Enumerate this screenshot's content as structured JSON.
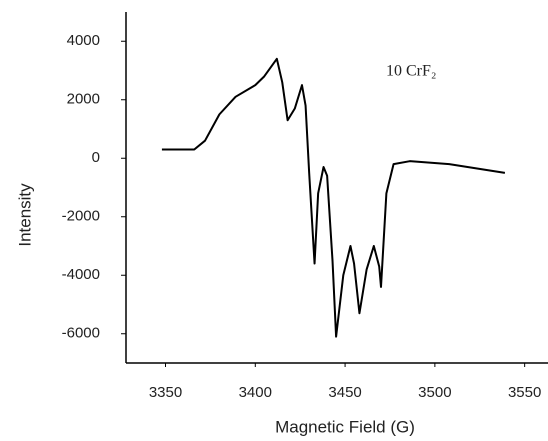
{
  "chart_data": {
    "type": "line",
    "x_label": "Magnetic Field (G)",
    "y_label": "Intensity",
    "annotation": "10 CrF₂",
    "x": [
      3348,
      3366,
      3372,
      3380,
      3389,
      3400,
      3405,
      3412,
      3415,
      3418,
      3422,
      3426,
      3428,
      3430,
      3433,
      3435,
      3438,
      3440,
      3443,
      3445,
      3449,
      3453,
      3455,
      3458,
      3462,
      3466,
      3469,
      3470,
      3473,
      3477,
      3486,
      3508,
      3539
    ],
    "series": [
      {
        "color": "#000000",
        "values": [
          300,
          300,
          600,
          1500,
          2100,
          2500,
          2800,
          3400,
          2600,
          1300,
          1700,
          2500,
          1800,
          -500,
          -3600,
          -1200,
          -300,
          -600,
          -3500,
          -6100,
          -4000,
          -3000,
          -3600,
          -5300,
          -3800,
          -3000,
          -3700,
          -4400,
          -1200,
          -200,
          -100,
          -200,
          -500
        ]
      }
    ],
    "xlim": [
      3328,
      3563
    ],
    "xticks": [
      3350,
      3400,
      3450,
      3500,
      3550
    ],
    "ylim": [
      -7000,
      5000
    ],
    "yticks": [
      4000,
      2000,
      0,
      -2000,
      -4000,
      -6000
    ]
  }
}
